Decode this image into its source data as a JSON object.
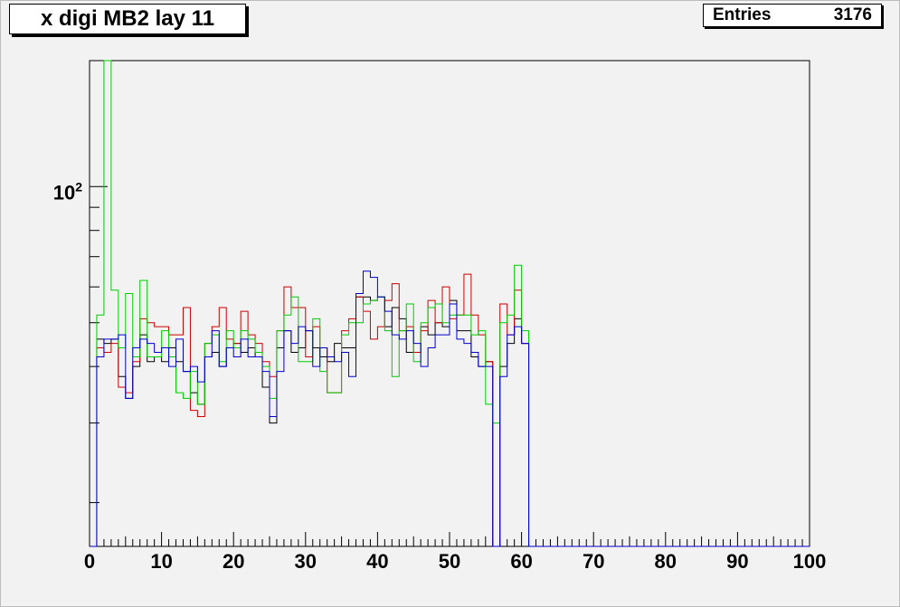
{
  "title": "x digi MB2 lay 11",
  "stats": {
    "label": "Entries",
    "value": "3176"
  },
  "chart_data": {
    "type": "line",
    "title": "x digi MB2 lay 11",
    "xlabel": "",
    "ylabel": "",
    "xlim": [
      0,
      100
    ],
    "ylog": true,
    "ylim": [
      16,
      190
    ],
    "x_ticks": [
      0,
      10,
      20,
      30,
      40,
      50,
      60,
      70,
      80,
      90,
      100
    ],
    "y_tick_label": {
      "base": "10",
      "exp": "2",
      "value": 100
    },
    "bin_width": 1,
    "series": [
      {
        "color": "#000000",
        "values": [
          0,
          46,
          45,
          46,
          38,
          34,
          40,
          47,
          41,
          42,
          41,
          44,
          41,
          39,
          35,
          33,
          42,
          43,
          40,
          44,
          45,
          43,
          44,
          42,
          36,
          30,
          44,
          48,
          43,
          44,
          48,
          44,
          42,
          41,
          45,
          44,
          44,
          57,
          57,
          56,
          57,
          49,
          54,
          51,
          43,
          43,
          49,
          47,
          50,
          49,
          56,
          48,
          48,
          42,
          40,
          41,
          0,
          40,
          45,
          51,
          45,
          0,
          0,
          0,
          0,
          0,
          0,
          0,
          0,
          0,
          0,
          0,
          0,
          0,
          0,
          0,
          0,
          0,
          0,
          0,
          0,
          0,
          0,
          0,
          0,
          0,
          0,
          0,
          0,
          0,
          0,
          0,
          0,
          0,
          0,
          0,
          0,
          0,
          0,
          0
        ]
      },
      {
        "color": "#cc0000",
        "values": [
          0,
          44,
          43,
          45,
          36,
          35,
          41,
          51,
          50,
          49,
          49,
          47,
          47,
          54,
          32,
          31,
          45,
          49,
          54,
          46,
          45,
          53,
          47,
          45,
          41,
          38,
          48,
          60,
          54,
          54,
          42,
          49,
          44,
          35,
          35,
          48,
          51,
          57,
          53,
          46,
          49,
          56,
          61,
          48,
          49,
          43,
          48,
          56,
          50,
          60,
          51,
          52,
          64,
          52,
          47,
          41,
          0,
          55,
          47,
          59,
          45,
          0,
          0,
          0,
          0,
          0,
          0,
          0,
          0,
          0,
          0,
          0,
          0,
          0,
          0,
          0,
          0,
          0,
          0,
          0,
          0,
          0,
          0,
          0,
          0,
          0,
          0,
          0,
          0,
          0,
          0,
          0,
          0,
          0,
          0,
          0,
          0,
          0,
          0,
          0
        ]
      },
      {
        "color": "#00cc00",
        "values": [
          16,
          52,
          190,
          59,
          44,
          58,
          42,
          62,
          42,
          42,
          48,
          42,
          35,
          34,
          39,
          33,
          45,
          47,
          41,
          48,
          44,
          48,
          46,
          43,
          40,
          34,
          48,
          52,
          57,
          41,
          41,
          51,
          39,
          35,
          35,
          47,
          50,
          50,
          55,
          56,
          57,
          48,
          38,
          48,
          55,
          41,
          50,
          54,
          55,
          50,
          52,
          52,
          52,
          47,
          48,
          33,
          30,
          50,
          52,
          67,
          48,
          0,
          0,
          0,
          0,
          0,
          0,
          0,
          0,
          0,
          0,
          0,
          0,
          0,
          0,
          0,
          0,
          0,
          0,
          0,
          0,
          0,
          0,
          0,
          0,
          0,
          0,
          0,
          0,
          0,
          0,
          0,
          0,
          0,
          0,
          0,
          0,
          0,
          0,
          0
        ]
      },
      {
        "color": "#0000cc",
        "values": [
          0,
          42,
          46,
          46,
          47,
          34,
          44,
          46,
          45,
          43,
          44,
          40,
          46,
          39,
          40,
          37,
          42,
          48,
          40,
          44,
          42,
          46,
          42,
          42,
          39,
          31,
          39,
          48,
          45,
          49,
          48,
          40,
          44,
          42,
          41,
          43,
          38,
          58,
          65,
          63,
          57,
          53,
          47,
          46,
          48,
          45,
          40,
          44,
          47,
          47,
          55,
          46,
          45,
          43,
          40,
          40,
          0,
          38,
          47,
          49,
          45,
          0,
          0,
          0,
          0,
          0,
          0,
          0,
          0,
          0,
          0,
          0,
          0,
          0,
          0,
          0,
          0,
          0,
          0,
          0,
          0,
          0,
          0,
          0,
          0,
          0,
          0,
          0,
          0,
          0,
          0,
          0,
          0,
          0,
          0,
          0,
          0,
          0,
          0,
          0
        ]
      }
    ]
  }
}
